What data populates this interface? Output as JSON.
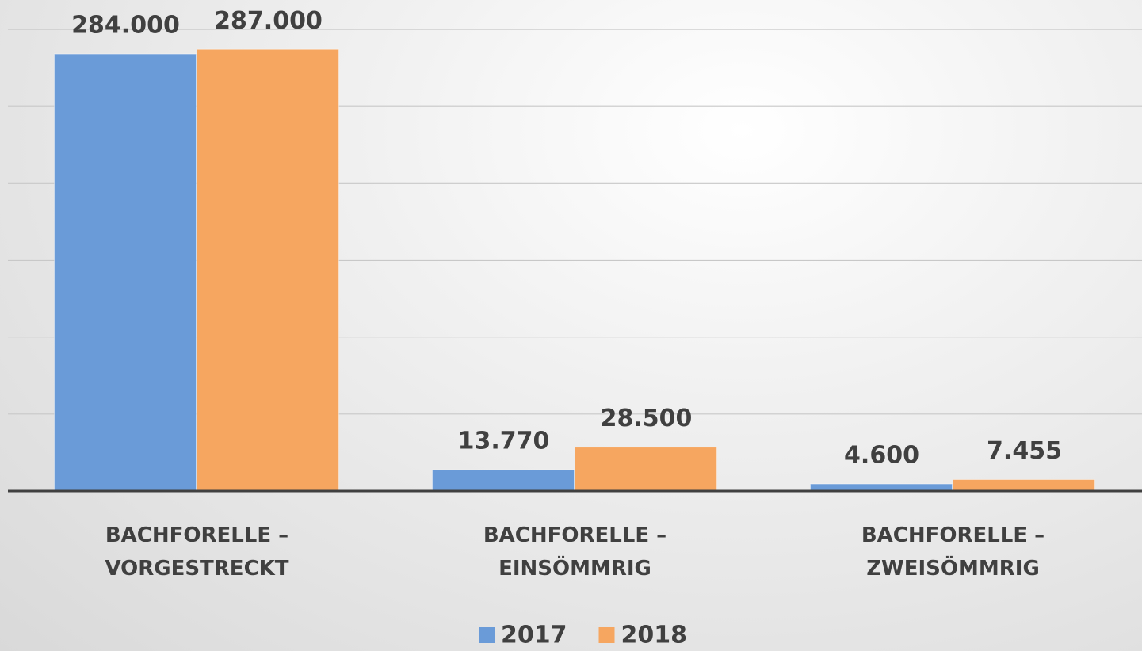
{
  "chart_data": {
    "type": "bar",
    "categories": [
      "BACHFORELLE –\nVORGESTRECKT",
      "BACHFORELLE –\nEINSÖMMRIG",
      "BACHFORELLE –\nZWEISÖMMRIG"
    ],
    "series": [
      {
        "name": "2017",
        "color": "#6a9bd8",
        "values": [
          284000,
          13770,
          4600
        ],
        "value_labels": [
          "284.000",
          "13.770",
          "4.600"
        ]
      },
      {
        "name": "2018",
        "color": "#f6a660",
        "values": [
          287000,
          28500,
          7455
        ],
        "value_labels": [
          "287.000",
          "28.500",
          "7.455"
        ]
      }
    ],
    "ylim": [
      0,
      300000
    ],
    "yticks": [
      0,
      50000,
      100000,
      150000,
      200000,
      250000,
      300000
    ],
    "grid": true,
    "legend": "bottom"
  }
}
